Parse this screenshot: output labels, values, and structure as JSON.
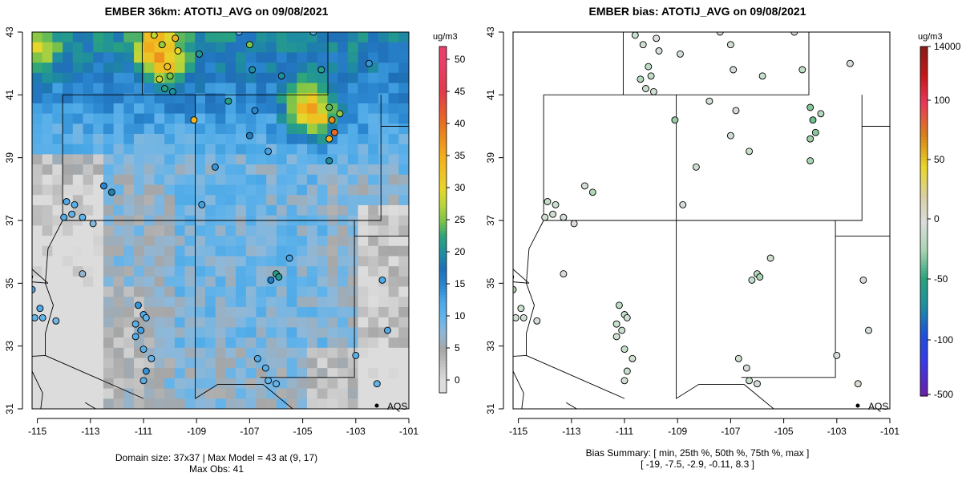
{
  "left": {
    "title": "EMBER 36km: ATOTIJ_AVG on 09/08/2021",
    "unit": "ug/m3",
    "colorbar_ticks": [
      "50",
      "45",
      "40",
      "35",
      "30",
      "25",
      "20",
      "15",
      "10",
      "5",
      "0"
    ],
    "caption_line1": "Domain size: 37x37 | Max Model = 43 at (9, 17)",
    "caption_line2": "Max Obs: 41",
    "legend_label": "AQS"
  },
  "right": {
    "title": "EMBER bias: ATOTIJ_AVG on 09/08/2021",
    "unit": "ug/m3",
    "colorbar_ticks": [
      "14000",
      "100",
      "50",
      "0",
      "-50",
      "-100",
      "-500"
    ],
    "caption_line1": "Bias Summary: [ min, 25th %, 50th %, 75th %, max ]",
    "caption_line2": "[ -19,   -7.5,   -2.9,   -0.11,   8.3 ]",
    "legend_label": "AQS"
  },
  "axes": {
    "x_ticks": [
      "-115",
      "-113",
      "-111",
      "-109",
      "-107",
      "-105",
      "-103",
      "-101"
    ],
    "y_ticks": [
      "31",
      "33",
      "35",
      "37",
      "39",
      "41",
      "43"
    ]
  },
  "colors": {
    "low": "#d9d9d9",
    "mid": "#4aa8e6",
    "high": "#1fa088",
    "peak": "#e23a4a",
    "bias_neutral": "#dcdcdc"
  }
}
